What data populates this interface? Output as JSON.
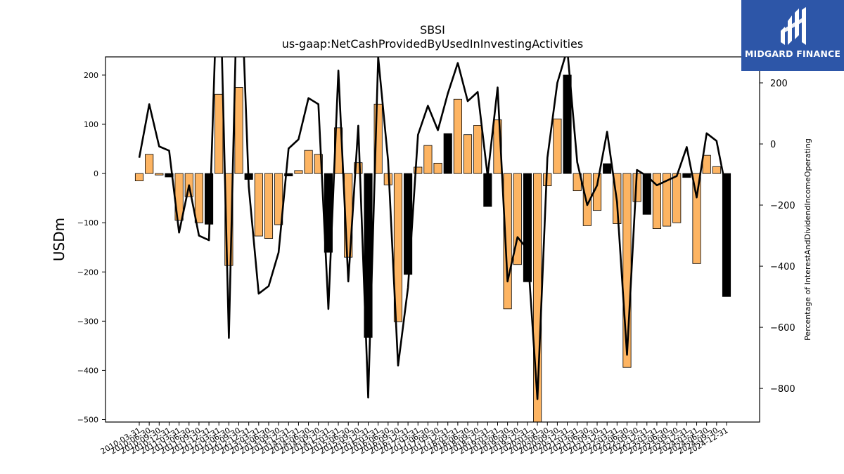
{
  "chart_data": {
    "type": "bar",
    "title": "SBSI",
    "subtitle": "us-gaap:NetCashProvidedByUsedInInvestingActivities",
    "ylabel": "USDm",
    "y2label": "Percentage of InterestAndDividendIncomeOperating",
    "ylim": [
      -505,
      237
    ],
    "y2lim": [
      -910,
      285
    ],
    "yticks": [
      200,
      100,
      0,
      -100,
      -200,
      -300,
      -400,
      -500
    ],
    "y2ticks": [
      200,
      0,
      -200,
      -400,
      -600,
      -800
    ],
    "colors": {
      "positive_change": "#FDB462",
      "negative_change": "#000000",
      "line": "#000000"
    },
    "categories": [
      "2010-03-31",
      "2010-06-30",
      "2010-09-30",
      "2010-12-31",
      "2011-03-31",
      "2011-06-30",
      "2011-09-30",
      "2011-12-31",
      "2012-03-31",
      "2012-06-30",
      "2012-09-30",
      "2012-12-31",
      "2013-03-31",
      "2013-06-30",
      "2013-09-30",
      "2013-12-31",
      "2014-03-31",
      "2014-06-30",
      "2014-09-30",
      "2014-12-31",
      "2015-03-31",
      "2015-06-30",
      "2015-09-30",
      "2015-12-31",
      "2016-03-31",
      "2016-06-30",
      "2016-09-30",
      "2016-12-31",
      "2017-03-31",
      "2017-06-30",
      "2017-09-30",
      "2017-12-31",
      "2018-03-31",
      "2018-06-30",
      "2018-09-30",
      "2018-12-31",
      "2019-03-31",
      "2019-06-30",
      "2019-09-30",
      "2019-12-31",
      "2020-03-31",
      "2020-06-30",
      "2020-09-30",
      "2020-12-31",
      "2021-03-31",
      "2021-06-30",
      "2021-09-30",
      "2021-12-31",
      "2022-03-31",
      "2022-06-30",
      "2022-09-30",
      "2022-12-31",
      "2023-03-31",
      "2023-06-30",
      "2023-09-30",
      "2023-12-31",
      "2024-03-31",
      "2024-06-30",
      "2024-09-30",
      "2024-12-31"
    ],
    "series": [
      {
        "kind": "bar",
        "values": [
          -15,
          39,
          -3,
          -7,
          -95,
          -47,
          -100,
          -103,
          161,
          -187,
          175,
          -12,
          -127,
          -132,
          -104,
          -5,
          6,
          47,
          39,
          -160,
          93,
          -170,
          22,
          -333,
          141,
          -23,
          -301,
          -205,
          13,
          57,
          21,
          81,
          151,
          79,
          98,
          -67,
          109,
          -275,
          -185,
          -220,
          -510,
          -25,
          111,
          200,
          -35,
          -106,
          -75,
          20,
          -102,
          -394,
          -57,
          -83,
          -112,
          -107,
          -100,
          -8,
          -183,
          37,
          14,
          -250
        ]
      },
      {
        "kind": "line",
        "values": [
          -45,
          130,
          -8,
          -22,
          -290,
          -135,
          -300,
          -315,
          700,
          -635,
          750,
          -140,
          -490,
          -465,
          -355,
          -15,
          15,
          150,
          130,
          -540,
          240,
          -450,
          60,
          -830,
          285,
          -55,
          -725,
          -470,
          30,
          125,
          45,
          165,
          265,
          140,
          170,
          -105,
          185,
          -450,
          -305,
          -345,
          -835,
          -45,
          200,
          310,
          -60,
          -200,
          -135,
          40,
          -190,
          -690,
          -85,
          -105,
          -135,
          -120,
          -105,
          -10,
          -175,
          35,
          10,
          -155
        ]
      }
    ]
  },
  "watermark": {
    "brand": "MIDGARD FINANCE"
  }
}
